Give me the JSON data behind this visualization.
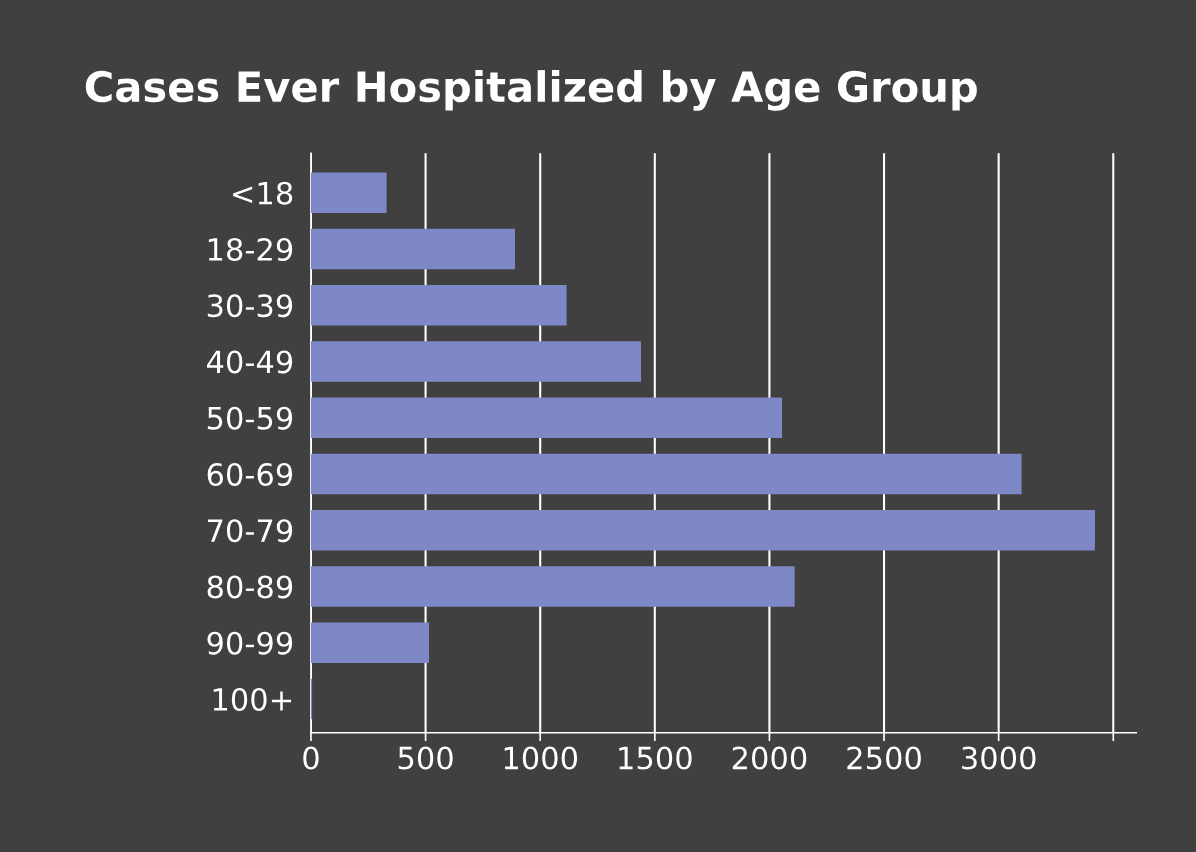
{
  "chart_data": {
    "type": "bar",
    "orientation": "horizontal",
    "title": "Cases Ever Hospitalized by Age Group",
    "categories": [
      "<18",
      "18-29",
      "30-39",
      "40-49",
      "50-59",
      "60-69",
      "70-79",
      "80-89",
      "90-99",
      "100+"
    ],
    "values": [
      330,
      890,
      1115,
      1440,
      2055,
      3100,
      3420,
      2110,
      515,
      5
    ],
    "color": "#7f88c6",
    "xlim": [
      0,
      3600
    ],
    "xticks": [
      0,
      500,
      1000,
      1500,
      2000,
      2500,
      3000,
      {
        "value": 3500,
        "label": null
      }
    ],
    "grid": "x",
    "legend": false
  }
}
